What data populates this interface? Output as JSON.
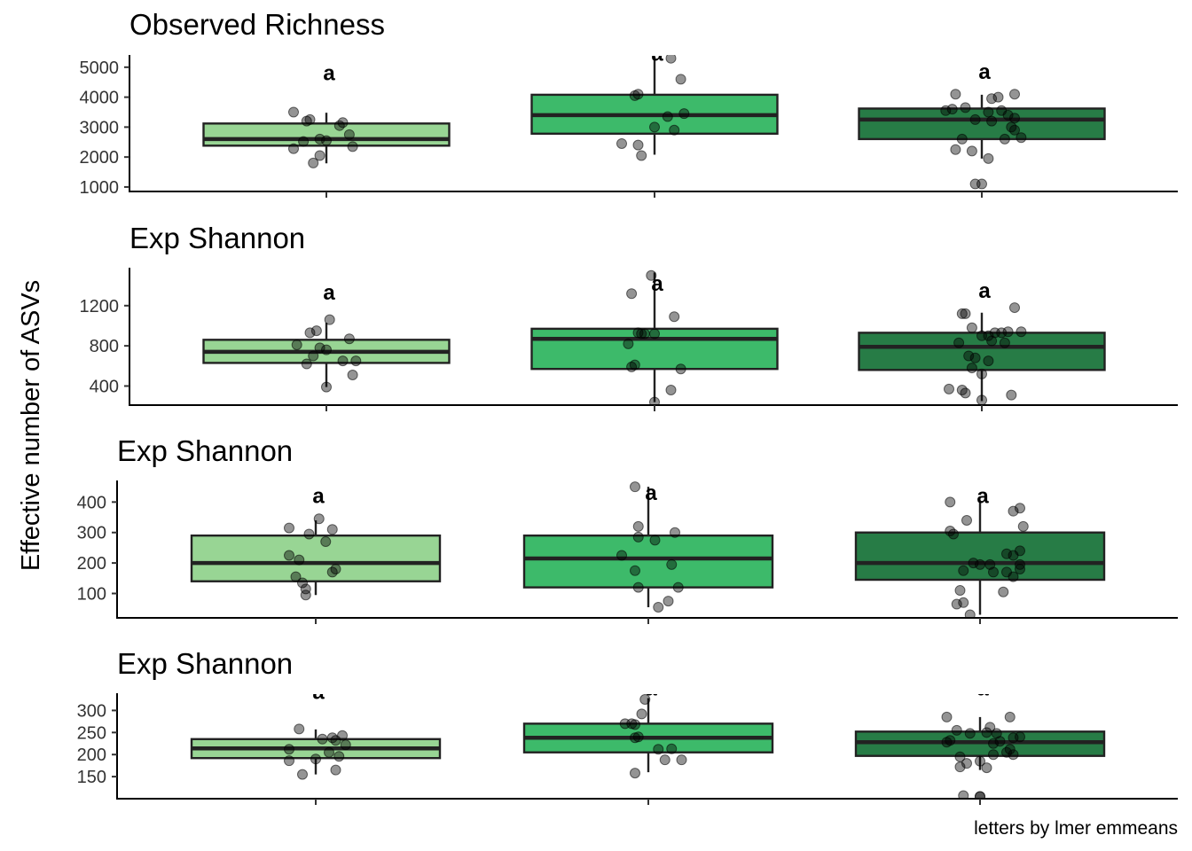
{
  "chart_data": {
    "type": "box",
    "ylabel": "Effective number of ASVs",
    "caption": "letters by lmer emmeans",
    "colors": {
      "fills": [
        "#98d594",
        "#3dba6a",
        "#277c46"
      ],
      "stroke": "#222222",
      "points": "#000000"
    },
    "groups": 3,
    "panels": [
      {
        "title": "Observed Richness",
        "ylim": [
          850,
          5350
        ],
        "ticks": [
          1000,
          2000,
          3000,
          4000,
          5000
        ],
        "tick_labels": [
          "1000",
          "2000",
          "3000",
          "4000",
          "5000"
        ],
        "boxes": [
          {
            "q1": 2380,
            "median": 2600,
            "q3": 3120,
            "wlo": 1790,
            "whi": 3480,
            "letter": "a",
            "letter_y": 4800,
            "points": [
              [
                -0.1,
                3500
              ],
              [
                -0.06,
                3200
              ],
              [
                -0.05,
                3250
              ],
              [
                -0.02,
                2600
              ],
              [
                0.04,
                3050
              ],
              [
                0.05,
                3150
              ],
              [
                0.07,
                2750
              ],
              [
                -0.07,
                2520
              ],
              [
                0.0,
                2550
              ],
              [
                -0.1,
                2280
              ],
              [
                -0.02,
                2050
              ],
              [
                -0.04,
                1800
              ],
              [
                0.08,
                2350
              ]
            ]
          },
          {
            "q1": 2780,
            "median": 3400,
            "q3": 4080,
            "wlo": 2080,
            "whi": 5350,
            "letter": "a",
            "letter_y": 5450,
            "points": [
              [
                -0.05,
                4100
              ],
              [
                -0.06,
                4050
              ],
              [
                0.04,
                3350
              ],
              [
                0.09,
                3450
              ],
              [
                0.0,
                3000
              ],
              [
                0.06,
                2900
              ],
              [
                0.05,
                5300
              ],
              [
                0.08,
                4600
              ],
              [
                -0.1,
                2450
              ],
              [
                -0.05,
                2400
              ],
              [
                -0.04,
                2050
              ]
            ]
          },
          {
            "q1": 2600,
            "median": 3250,
            "q3": 3620,
            "wlo": 1950,
            "whi": 4080,
            "letter": "a",
            "letter_y": 4850,
            "points": [
              [
                -0.08,
                4100
              ],
              [
                0.03,
                3950
              ],
              [
                0.05,
                4000
              ],
              [
                0.1,
                4100
              ],
              [
                -0.11,
                3550
              ],
              [
                -0.09,
                3600
              ],
              [
                -0.05,
                3650
              ],
              [
                0.02,
                3500
              ],
              [
                0.06,
                3550
              ],
              [
                0.08,
                3400
              ],
              [
                0.1,
                3300
              ],
              [
                -0.02,
                3250
              ],
              [
                0.03,
                3200
              ],
              [
                0.09,
                3000
              ],
              [
                0.1,
                2900
              ],
              [
                0.12,
                2650
              ],
              [
                0.07,
                2600
              ],
              [
                -0.06,
                2600
              ],
              [
                -0.08,
                2250
              ],
              [
                -0.03,
                2200
              ],
              [
                0.02,
                1950
              ],
              [
                -0.02,
                1100
              ],
              [
                0.0,
                1100
              ]
            ]
          }
        ]
      },
      {
        "title": "Exp Shannon",
        "ylim": [
          210,
          1560
        ],
        "ticks": [
          400,
          800,
          1200
        ],
        "tick_labels": [
          "400",
          "800",
          "1200"
        ],
        "boxes": [
          {
            "q1": 630,
            "median": 740,
            "q3": 860,
            "wlo": 390,
            "whi": 1030,
            "letter": "a",
            "letter_y": 1330,
            "points": [
              [
                0.01,
                1060
              ],
              [
                -0.03,
                950
              ],
              [
                -0.05,
                930
              ],
              [
                0.07,
                870
              ],
              [
                -0.09,
                810
              ],
              [
                -0.02,
                780
              ],
              [
                0.0,
                760
              ],
              [
                -0.04,
                700
              ],
              [
                0.05,
                650
              ],
              [
                0.09,
                650
              ],
              [
                -0.06,
                620
              ],
              [
                0.08,
                510
              ],
              [
                0.0,
                390
              ]
            ]
          },
          {
            "q1": 570,
            "median": 870,
            "q3": 970,
            "wlo": 240,
            "whi": 1530,
            "letter": "a",
            "letter_y": 1420,
            "points": [
              [
                -0.01,
                1500
              ],
              [
                -0.07,
                1320
              ],
              [
                0.06,
                1090
              ],
              [
                -0.05,
                930
              ],
              [
                -0.04,
                920
              ],
              [
                -0.03,
                920
              ],
              [
                0.0,
                920
              ],
              [
                -0.08,
                820
              ],
              [
                -0.06,
                610
              ],
              [
                -0.07,
                590
              ],
              [
                0.08,
                570
              ],
              [
                0.05,
                360
              ],
              [
                0.0,
                240
              ]
            ]
          },
          {
            "q1": 560,
            "median": 790,
            "q3": 930,
            "wlo": 250,
            "whi": 1130,
            "letter": "a",
            "letter_y": 1350,
            "points": [
              [
                -0.06,
                1120
              ],
              [
                -0.05,
                1120
              ],
              [
                0.1,
                1180
              ],
              [
                0.08,
                940
              ],
              [
                0.12,
                940
              ],
              [
                -0.03,
                980
              ],
              [
                0.04,
                930
              ],
              [
                0.06,
                930
              ],
              [
                0.0,
                900
              ],
              [
                0.02,
                900
              ],
              [
                -0.07,
                830
              ],
              [
                0.03,
                850
              ],
              [
                0.07,
                830
              ],
              [
                -0.04,
                700
              ],
              [
                -0.02,
                680
              ],
              [
                0.02,
                650
              ],
              [
                -0.03,
                580
              ],
              [
                0.0,
                520
              ],
              [
                -0.1,
                370
              ],
              [
                -0.06,
                360
              ],
              [
                -0.05,
                330
              ],
              [
                0.09,
                310
              ],
              [
                0.0,
                260
              ]
            ]
          }
        ]
      },
      {
        "title": "Exp Shannon",
        "ylim": [
          20,
          465
        ],
        "ticks": [
          100,
          200,
          300,
          400
        ],
        "tick_labels": [
          "100",
          "200",
          "300",
          "400"
        ],
        "boxes": [
          {
            "q1": 140,
            "median": 200,
            "q3": 290,
            "wlo": 95,
            "whi": 340,
            "letter": "a",
            "letter_y": 420,
            "points": [
              [
                0.01,
                345
              ],
              [
                -0.08,
                315
              ],
              [
                0.05,
                310
              ],
              [
                -0.02,
                295
              ],
              [
                0.03,
                270
              ],
              [
                -0.08,
                225
              ],
              [
                -0.05,
                210
              ],
              [
                0.06,
                180
              ],
              [
                0.05,
                170
              ],
              [
                -0.06,
                155
              ],
              [
                -0.04,
                135
              ],
              [
                -0.03,
                115
              ],
              [
                -0.03,
                95
              ]
            ]
          },
          {
            "q1": 120,
            "median": 215,
            "q3": 290,
            "wlo": 55,
            "whi": 450,
            "letter": "a",
            "letter_y": 430,
            "points": [
              [
                -0.04,
                450
              ],
              [
                -0.03,
                320
              ],
              [
                -0.03,
                285
              ],
              [
                0.02,
                275
              ],
              [
                0.08,
                300
              ],
              [
                -0.08,
                225
              ],
              [
                -0.04,
                175
              ],
              [
                0.07,
                195
              ],
              [
                -0.03,
                120
              ],
              [
                0.09,
                120
              ],
              [
                0.06,
                75
              ],
              [
                0.03,
                55
              ]
            ]
          },
          {
            "q1": 145,
            "median": 200,
            "q3": 300,
            "wlo": 30,
            "whi": 400,
            "letter": "a",
            "letter_y": 420,
            "points": [
              [
                -0.09,
                400
              ],
              [
                0.1,
                370
              ],
              [
                0.12,
                380
              ],
              [
                -0.04,
                340
              ],
              [
                0.13,
                320
              ],
              [
                -0.09,
                305
              ],
              [
                -0.08,
                295
              ],
              [
                0.12,
                240
              ],
              [
                0.1,
                225
              ],
              [
                0.08,
                230
              ],
              [
                -0.02,
                200
              ],
              [
                0.0,
                195
              ],
              [
                0.03,
                195
              ],
              [
                0.12,
                195
              ],
              [
                0.12,
                180
              ],
              [
                -0.05,
                175
              ],
              [
                0.04,
                170
              ],
              [
                0.08,
                170
              ],
              [
                0.1,
                155
              ],
              [
                -0.06,
                110
              ],
              [
                0.07,
                105
              ],
              [
                -0.07,
                65
              ],
              [
                -0.05,
                70
              ],
              [
                -0.03,
                30
              ]
            ]
          }
        ]
      },
      {
        "title": "Exp Shannon",
        "ylim": [
          100,
          335
        ],
        "ticks": [
          150,
          200,
          250,
          300
        ],
        "tick_labels": [
          "150",
          "200",
          "250",
          "300"
        ],
        "boxes": [
          {
            "q1": 192,
            "median": 214,
            "q3": 235,
            "wlo": 155,
            "whi": 257,
            "letter": "a",
            "letter_y": 342,
            "points": [
              [
                -0.05,
                258
              ],
              [
                0.08,
                243
              ],
              [
                0.05,
                238
              ],
              [
                0.02,
                235
              ],
              [
                0.06,
                232
              ],
              [
                -0.08,
                212
              ],
              [
                0.09,
                222
              ],
              [
                0.04,
                205
              ],
              [
                -0.08,
                186
              ],
              [
                0.0,
                190
              ],
              [
                0.07,
                196
              ],
              [
                0.06,
                165
              ],
              [
                -0.04,
                155
              ]
            ]
          },
          {
            "q1": 205,
            "median": 238,
            "q3": 270,
            "wlo": 160,
            "whi": 328,
            "letter": "a",
            "letter_y": 350,
            "points": [
              [
                -0.01,
                325
              ],
              [
                -0.02,
                292
              ],
              [
                -0.07,
                270
              ],
              [
                -0.05,
                270
              ],
              [
                -0.04,
                268
              ],
              [
                -0.04,
                238
              ],
              [
                -0.03,
                240
              ],
              [
                0.07,
                213
              ],
              [
                0.03,
                212
              ],
              [
                0.1,
                188
              ],
              [
                0.05,
                188
              ],
              [
                -0.04,
                158
              ]
            ]
          },
          {
            "q1": 197,
            "median": 228,
            "q3": 252,
            "wlo": 165,
            "whi": 285,
            "letter": "a",
            "letter_y": 350,
            "points": [
              [
                -0.1,
                285
              ],
              [
                0.09,
                285
              ],
              [
                -0.07,
                255
              ],
              [
                0.03,
                262
              ],
              [
                0.02,
                250
              ],
              [
                -0.03,
                248
              ],
              [
                0.05,
                248
              ],
              [
                0.1,
                238
              ],
              [
                0.12,
                240
              ],
              [
                -0.09,
                232
              ],
              [
                -0.1,
                228
              ],
              [
                0.06,
                230
              ],
              [
                0.04,
                225
              ],
              [
                0.09,
                212
              ],
              [
                0.08,
                205
              ],
              [
                0.1,
                200
              ],
              [
                0.04,
                200
              ],
              [
                -0.06,
                195
              ],
              [
                0.0,
                185
              ],
              [
                -0.04,
                180
              ],
              [
                -0.06,
                172
              ],
              [
                0.02,
                170
              ],
              [
                -0.05,
                107
              ],
              [
                0.0,
                105
              ],
              [
                0.0,
                105
              ]
            ]
          }
        ]
      }
    ]
  }
}
